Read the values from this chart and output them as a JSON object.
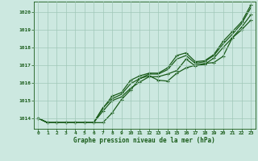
{
  "xlabel": "Graphe pression niveau de la mer (hPa)",
  "xlim": [
    -0.5,
    23.5
  ],
  "ylim": [
    1013.4,
    1020.6
  ],
  "yticks": [
    1014,
    1015,
    1016,
    1017,
    1018,
    1019,
    1020
  ],
  "xticks": [
    0,
    1,
    2,
    3,
    4,
    5,
    6,
    7,
    8,
    9,
    10,
    11,
    12,
    13,
    14,
    15,
    16,
    17,
    18,
    19,
    20,
    21,
    22,
    23
  ],
  "bg_color": "#cce8e0",
  "grid_color": "#a0c8b8",
  "line_color": "#1a5c1a",
  "series": [
    [
      1014.0,
      1013.75,
      1013.75,
      1013.75,
      1013.75,
      1013.75,
      1013.75,
      1013.75,
      1014.3,
      1015.05,
      1015.6,
      1016.25,
      1016.4,
      1016.15,
      1016.1,
      1016.55,
      1016.85,
      1017.0,
      1017.1,
      1017.15,
      1017.5,
      1018.55,
      1019.0,
      1019.55
    ],
    [
      1014.0,
      1013.75,
      1013.75,
      1013.75,
      1013.75,
      1013.75,
      1013.75,
      1014.4,
      1015.0,
      1015.2,
      1015.7,
      1016.05,
      1016.35,
      1016.35,
      1016.5,
      1016.7,
      1017.35,
      1016.95,
      1017.05,
      1017.4,
      1018.0,
      1018.55,
      1019.15,
      1019.85
    ],
    [
      1014.0,
      1013.75,
      1013.75,
      1013.75,
      1013.75,
      1013.75,
      1013.75,
      1014.6,
      1015.1,
      1015.35,
      1015.95,
      1016.25,
      1016.5,
      1016.5,
      1016.75,
      1017.35,
      1017.55,
      1017.1,
      1017.2,
      1017.55,
      1018.2,
      1018.75,
      1019.35,
      1020.25
    ],
    [
      1014.0,
      1013.75,
      1013.75,
      1013.75,
      1013.75,
      1013.75,
      1013.75,
      1014.55,
      1015.25,
      1015.45,
      1016.15,
      1016.4,
      1016.55,
      1016.55,
      1016.85,
      1017.55,
      1017.7,
      1017.2,
      1017.25,
      1017.6,
      1018.35,
      1018.9,
      1019.45,
      1020.4
    ]
  ],
  "markers": [
    "+",
    "+",
    "+",
    "+"
  ],
  "marker_sizes": [
    3.5,
    3.5,
    3.5,
    3.5
  ],
  "linewidths": [
    0.9,
    0.9,
    0.9,
    0.9
  ],
  "show_markers": [
    true,
    true,
    false,
    true
  ]
}
